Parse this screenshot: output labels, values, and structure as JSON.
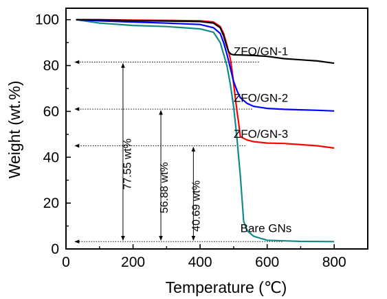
{
  "chart_data": {
    "type": "line",
    "xlabel": "Temperature (℃)",
    "ylabel": "Weight (wt.%)",
    "xlim": [
      0,
      900
    ],
    "ylim": [
      0,
      105
    ],
    "x_ticks": [
      0,
      200,
      400,
      600,
      800
    ],
    "y_ticks": [
      0,
      20,
      40,
      60,
      80,
      100
    ],
    "series": [
      {
        "name": "ZFO/GN-1",
        "color": "#000000",
        "x": [
          30,
          100,
          200,
          300,
          400,
          440,
          460,
          470,
          478,
          485,
          492,
          500,
          520,
          540,
          560,
          600,
          650,
          700,
          750,
          800
        ],
        "y": [
          100,
          99.9,
          99.6,
          99.4,
          99.2,
          98.5,
          96.5,
          93,
          89,
          86,
          85,
          84.7,
          84.6,
          84.5,
          84.4,
          84,
          83,
          82.5,
          82,
          81
        ]
      },
      {
        "name": "ZFO/GN-2",
        "color": "#0000ff",
        "x": [
          30,
          100,
          200,
          300,
          400,
          440,
          460,
          470,
          480,
          490,
          500,
          510,
          520,
          540,
          560,
          600,
          650,
          700,
          750,
          800
        ],
        "y": [
          100,
          99.5,
          99,
          98.5,
          97.9,
          96.5,
          94,
          90,
          85,
          79,
          73,
          69,
          66,
          63.5,
          62.2,
          61.3,
          60.9,
          60.7,
          60.5,
          60.2
        ]
      },
      {
        "name": "ZFO/GN-3",
        "color": "#ff0000",
        "x": [
          30,
          100,
          200,
          300,
          400,
          440,
          460,
          470,
          480,
          490,
          495,
          500,
          505,
          510,
          515,
          520,
          540,
          560,
          600,
          650,
          700,
          750,
          800
        ],
        "y": [
          100,
          100,
          99.8,
          99.7,
          99.5,
          99,
          97,
          94,
          89,
          83,
          78,
          72,
          66,
          60,
          55,
          49,
          47.5,
          46.8,
          46.2,
          46,
          45.5,
          45,
          44
        ]
      },
      {
        "name": "Bare GNs",
        "color": "#138a8a",
        "x": [
          30,
          100,
          200,
          300,
          400,
          440,
          460,
          480,
          490,
          500,
          510,
          520,
          530,
          540,
          560,
          600,
          700,
          800
        ],
        "y": [
          100,
          98.5,
          97.5,
          97,
          96,
          94.5,
          90,
          80,
          72,
          62,
          48,
          32,
          12,
          8,
          5.5,
          3.8,
          3.3,
          3.2
        ]
      }
    ],
    "annotations": [
      {
        "text": "77.55 wt%",
        "level": 3.2,
        "target": 81.5,
        "x_arrow": 170,
        "guide_low_end": 645,
        "guide_high_end": 575,
        "label_x": 120
      },
      {
        "text": "56.88 wt%",
        "level": 3.2,
        "target": 61.0,
        "x_arrow": 283,
        "guide_high_end": 555,
        "label_x": 230
      },
      {
        "text": "40.69 wt%",
        "level": 3.2,
        "target": 45.0,
        "x_arrow": 380,
        "guide_high_end": 535,
        "label_x": 325
      }
    ]
  }
}
